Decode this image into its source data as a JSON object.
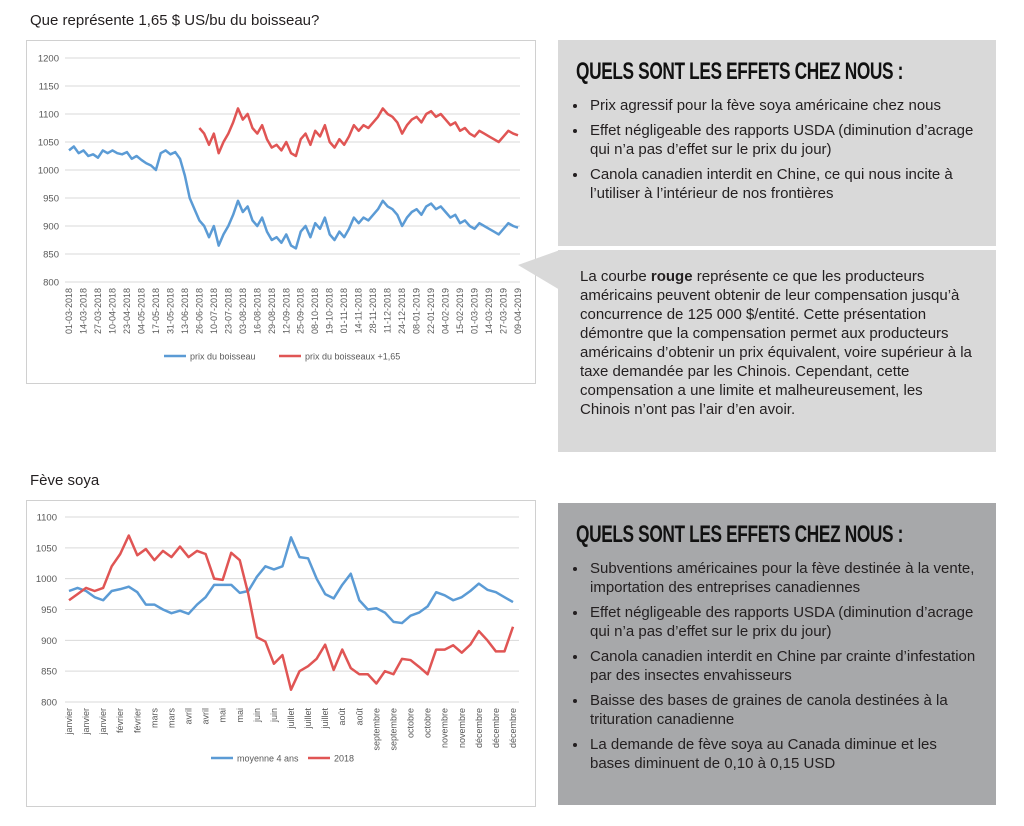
{
  "chart_data": [
    {
      "type": "line",
      "title": "Que représente 1,65 $ US/bu du boisseau?",
      "categories": [
        "01-03-2018",
        null,
        null,
        "14-03-2018",
        null,
        null,
        "27-03-2018",
        null,
        null,
        "10-04-2018",
        null,
        null,
        "23-04-2018",
        null,
        null,
        "04-05-2018",
        null,
        null,
        "17-05-2018",
        null,
        null,
        "31-05-2018",
        null,
        null,
        "13-06-2018",
        null,
        null,
        "26-06-2018",
        null,
        null,
        "10-07-2018",
        null,
        null,
        "23-07-2018",
        null,
        null,
        "03-08-2018",
        null,
        null,
        "16-08-2018",
        null,
        null,
        "29-08-2018",
        null,
        null,
        "12-09-2018",
        null,
        null,
        "25-09-2018",
        null,
        null,
        "08-10-2018",
        null,
        null,
        "19-10-2018",
        null,
        null,
        "01-11-2018",
        null,
        null,
        "14-11-2018",
        null,
        null,
        "28-11-2018",
        null,
        null,
        "11-12-2018",
        null,
        null,
        "24-12-2018",
        null,
        null,
        "08-01-2019",
        null,
        null,
        "22-01-2019",
        null,
        null,
        "04-02-2019",
        null,
        null,
        "15-02-2019",
        null,
        null,
        "01-03-2019",
        null,
        null,
        "14-03-2019",
        null,
        null,
        "27-03-2019",
        null,
        null,
        "09-04-2019"
      ],
      "series": [
        {
          "name": "prix du boisseau",
          "color": "#5b9bd5",
          "values": [
            1035,
            1042,
            1030,
            1035,
            1025,
            1028,
            1022,
            1035,
            1030,
            1035,
            1030,
            1028,
            1032,
            1020,
            1025,
            1018,
            1012,
            1008,
            1000,
            1030,
            1035,
            1028,
            1032,
            1020,
            990,
            950,
            930,
            910,
            900,
            880,
            900,
            865,
            885,
            900,
            920,
            945,
            925,
            935,
            910,
            900,
            915,
            890,
            875,
            880,
            870,
            885,
            865,
            860,
            890,
            900,
            880,
            905,
            895,
            915,
            885,
            875,
            890,
            880,
            895,
            915,
            905,
            915,
            910,
            920,
            930,
            945,
            935,
            930,
            920,
            900,
            915,
            925,
            930,
            920,
            935,
            940,
            930,
            935,
            925,
            915,
            920,
            905,
            910,
            900,
            895,
            905,
            900,
            895,
            890,
            885,
            895,
            905,
            900,
            897
          ]
        },
        {
          "name": "prix du boisseaux +1,65",
          "color": "#e05554",
          "values": [
            null,
            null,
            null,
            null,
            null,
            null,
            null,
            null,
            null,
            null,
            null,
            null,
            null,
            null,
            null,
            null,
            null,
            null,
            null,
            null,
            null,
            null,
            null,
            null,
            null,
            null,
            null,
            1075,
            1065,
            1045,
            1065,
            1030,
            1050,
            1065,
            1085,
            1110,
            1090,
            1100,
            1075,
            1065,
            1080,
            1055,
            1040,
            1045,
            1035,
            1050,
            1030,
            1025,
            1055,
            1065,
            1045,
            1070,
            1060,
            1080,
            1050,
            1040,
            1055,
            1045,
            1060,
            1080,
            1070,
            1080,
            1075,
            1085,
            1095,
            1110,
            1100,
            1095,
            1085,
            1065,
            1080,
            1090,
            1095,
            1085,
            1100,
            1105,
            1095,
            1100,
            1090,
            1080,
            1085,
            1070,
            1075,
            1065,
            1060,
            1070,
            1065,
            1060,
            1055,
            1050,
            1060,
            1070,
            1065,
            1062
          ]
        }
      ],
      "ylim": [
        800,
        1200
      ],
      "yticks": [
        800,
        850,
        900,
        950,
        1000,
        1050,
        1100,
        1150,
        1200
      ],
      "grid": true,
      "legend": "bottom"
    },
    {
      "type": "line",
      "title": "Fève soya",
      "categories": [
        "janvier",
        null,
        "janvier",
        null,
        "janvier",
        null,
        "février",
        null,
        "février",
        null,
        "mars",
        null,
        "mars",
        null,
        "avril",
        null,
        "avril",
        null,
        "mai",
        null,
        "mai",
        null,
        "juin",
        null,
        "juin",
        null,
        "juillet",
        null,
        "juillet",
        null,
        "juillet",
        null,
        "août",
        null,
        "août",
        null,
        "septembre",
        null,
        "septembre",
        null,
        "octobre",
        null,
        "octobre",
        null,
        "novembre",
        null,
        "novembre",
        null,
        "décembre",
        null,
        "décembre",
        null,
        "décembre"
      ],
      "series": [
        {
          "name": "moyenne 4 ans",
          "color": "#5b9bd5",
          "values": [
            980,
            985,
            980,
            970,
            965,
            980,
            983,
            987,
            978,
            958,
            958,
            950,
            944,
            948,
            943,
            958,
            970,
            990,
            990,
            990,
            977,
            980,
            1003,
            1020,
            1015,
            1020,
            1067,
            1035,
            1033,
            1000,
            975,
            968,
            990,
            1008,
            965,
            950,
            952,
            945,
            930,
            928,
            940,
            945,
            955,
            978,
            973,
            965,
            970,
            980,
            992,
            982,
            978,
            970,
            962
          ]
        },
        {
          "name": "2018",
          "color": "#e05554",
          "values": [
            965,
            975,
            985,
            980,
            985,
            1020,
            1040,
            1070,
            1038,
            1048,
            1030,
            1045,
            1035,
            1052,
            1035,
            1045,
            1040,
            1000,
            998,
            1042,
            1030,
            975,
            905,
            898,
            862,
            876,
            820,
            850,
            858,
            870,
            893,
            852,
            885,
            855,
            845,
            845,
            830,
            850,
            845,
            870,
            868,
            857,
            845,
            885,
            885,
            892,
            880,
            893,
            915,
            900,
            882,
            882,
            922
          ]
        }
      ],
      "ylim": [
        800,
        1100
      ],
      "yticks": [
        800,
        850,
        900,
        950,
        1000,
        1050,
        1100
      ],
      "grid": true,
      "legend": "bottom"
    }
  ],
  "panels": [
    {
      "heading": "QUELS SONT LES EFFETS CHEZ NOUS :",
      "bullets": [
        "Prix agressif pour la fève soya américaine chez nous",
        "Effet négligeable des rapports USDA (diminution d’acrage qui n’a pas d’effet sur le prix du jour)",
        "Canola canadien interdit en Chine, ce qui nous incite à l’utiliser à l’intérieur de nos frontières"
      ]
    },
    {
      "heading": "QUELS SONT LES EFFETS CHEZ NOUS :",
      "bullets": [
        "Subventions américaines pour la fève destinée à la vente, importation des entreprises canadiennes",
        "Effet négligeable des rapports USDA (diminution d’acrage qui n’a pas d’effet sur le prix du jour)",
        "Canola canadien interdit en Chine par crainte d’infestation par des insectes envahisseurs",
        "Baisse des bases de graines de canola destinées à la trituration canadienne",
        "La demande de fève soya au Canada diminue et les bases diminuent de 0,10 à 0,15 USD"
      ]
    }
  ],
  "callout": {
    "before": "La courbe ",
    "emphasis": "rouge",
    "after": " représente ce que les producteurs américains peuvent obtenir de leur compensation jusqu’à concurrence de 125 000 $/entité. Cette présentation démontre que la compensation permet aux producteurs américains d’obtenir un prix équivalent, voire supérieur à la taxe demandée par les Chinois. Cependant, cette compensation a une limite et malheureusement, les Chinois n’ont pas l’air d’en avoir."
  }
}
